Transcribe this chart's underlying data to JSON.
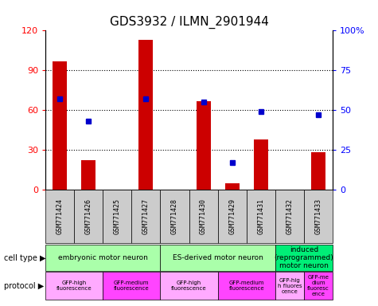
{
  "title": "GDS3932 / ILMN_2901944",
  "samples": [
    "GSM771424",
    "GSM771426",
    "GSM771425",
    "GSM771427",
    "GSM771428",
    "GSM771430",
    "GSM771429",
    "GSM771431",
    "GSM771432",
    "GSM771433"
  ],
  "counts": [
    97,
    22,
    0,
    113,
    0,
    67,
    5,
    38,
    0,
    28
  ],
  "percentiles": [
    57,
    43,
    null,
    57,
    null,
    55,
    17,
    49,
    null,
    47
  ],
  "cell_types": [
    {
      "label": "embryonic motor neuron",
      "start": 0,
      "end": 4,
      "color": "#aaffaa"
    },
    {
      "label": "ES-derived motor neuron",
      "start": 4,
      "end": 8,
      "color": "#aaffaa"
    },
    {
      "label": "induced\n(reprogrammed)\nmotor neuron",
      "start": 8,
      "end": 10,
      "color": "#00ee77"
    }
  ],
  "protocols": [
    {
      "label": "GFP-high\nfluorescence",
      "start": 0,
      "end": 2,
      "color": "#ffaaff"
    },
    {
      "label": "GFP-medium\nfluorescence",
      "start": 2,
      "end": 4,
      "color": "#ff44ff"
    },
    {
      "label": "GFP-high\nfluorescence",
      "start": 4,
      "end": 6,
      "color": "#ffaaff"
    },
    {
      "label": "GFP-medium\nfluorescence",
      "start": 6,
      "end": 8,
      "color": "#ff44ff"
    },
    {
      "label": "GFP-hig\nh fluores\ncence",
      "start": 8,
      "end": 9,
      "color": "#ffaaff"
    },
    {
      "label": "GFP-me\ndium\nfluoresc\nence",
      "start": 9,
      "end": 10,
      "color": "#ff44ff"
    }
  ],
  "ylim_left": [
    0,
    120
  ],
  "ylim_right": [
    0,
    100
  ],
  "yticks_left": [
    0,
    30,
    60,
    90,
    120
  ],
  "yticks_right": [
    0,
    25,
    50,
    75,
    100
  ],
  "yticklabels_right": [
    "0",
    "25",
    "50",
    "75",
    "100%"
  ],
  "bar_color": "#cc0000",
  "dot_color": "#0000cc",
  "bg_color": "#ffffff",
  "label_bg_color": "#cccccc",
  "title_fontsize": 11,
  "bar_width": 0.5
}
